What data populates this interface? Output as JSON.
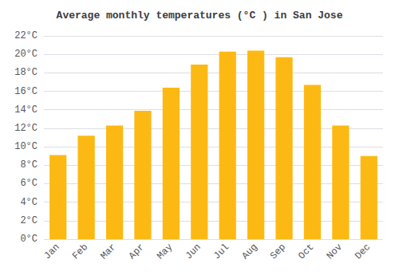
{
  "chart_data": {
    "type": "bar",
    "title": "Average monthly temperatures (°C ) in San Jose",
    "categories": [
      "Jan",
      "Feb",
      "Mar",
      "Apr",
      "May",
      "Jun",
      "Jul",
      "Aug",
      "Sep",
      "Oct",
      "Nov",
      "Dec"
    ],
    "values": [
      9.1,
      11.2,
      12.3,
      13.9,
      16.4,
      18.9,
      20.3,
      20.4,
      19.7,
      16.7,
      12.3,
      9.0
    ],
    "color": "#FDB913",
    "ylim": [
      0,
      22
    ],
    "yticks": [
      {
        "value": 0,
        "label": "0°C"
      },
      {
        "value": 2,
        "label": "2°C"
      },
      {
        "value": 4,
        "label": "4°C"
      },
      {
        "value": 6,
        "label": "6°C"
      },
      {
        "value": 8,
        "label": "8°C"
      },
      {
        "value": 10,
        "label": "10°C"
      },
      {
        "value": 12,
        "label": "12°C"
      },
      {
        "value": 14,
        "label": "14°C"
      },
      {
        "value": 16,
        "label": "16°C"
      },
      {
        "value": 18,
        "label": "18°C"
      },
      {
        "value": 20,
        "label": "20°C"
      },
      {
        "value": 22,
        "label": "22°C"
      }
    ],
    "grid": true
  }
}
